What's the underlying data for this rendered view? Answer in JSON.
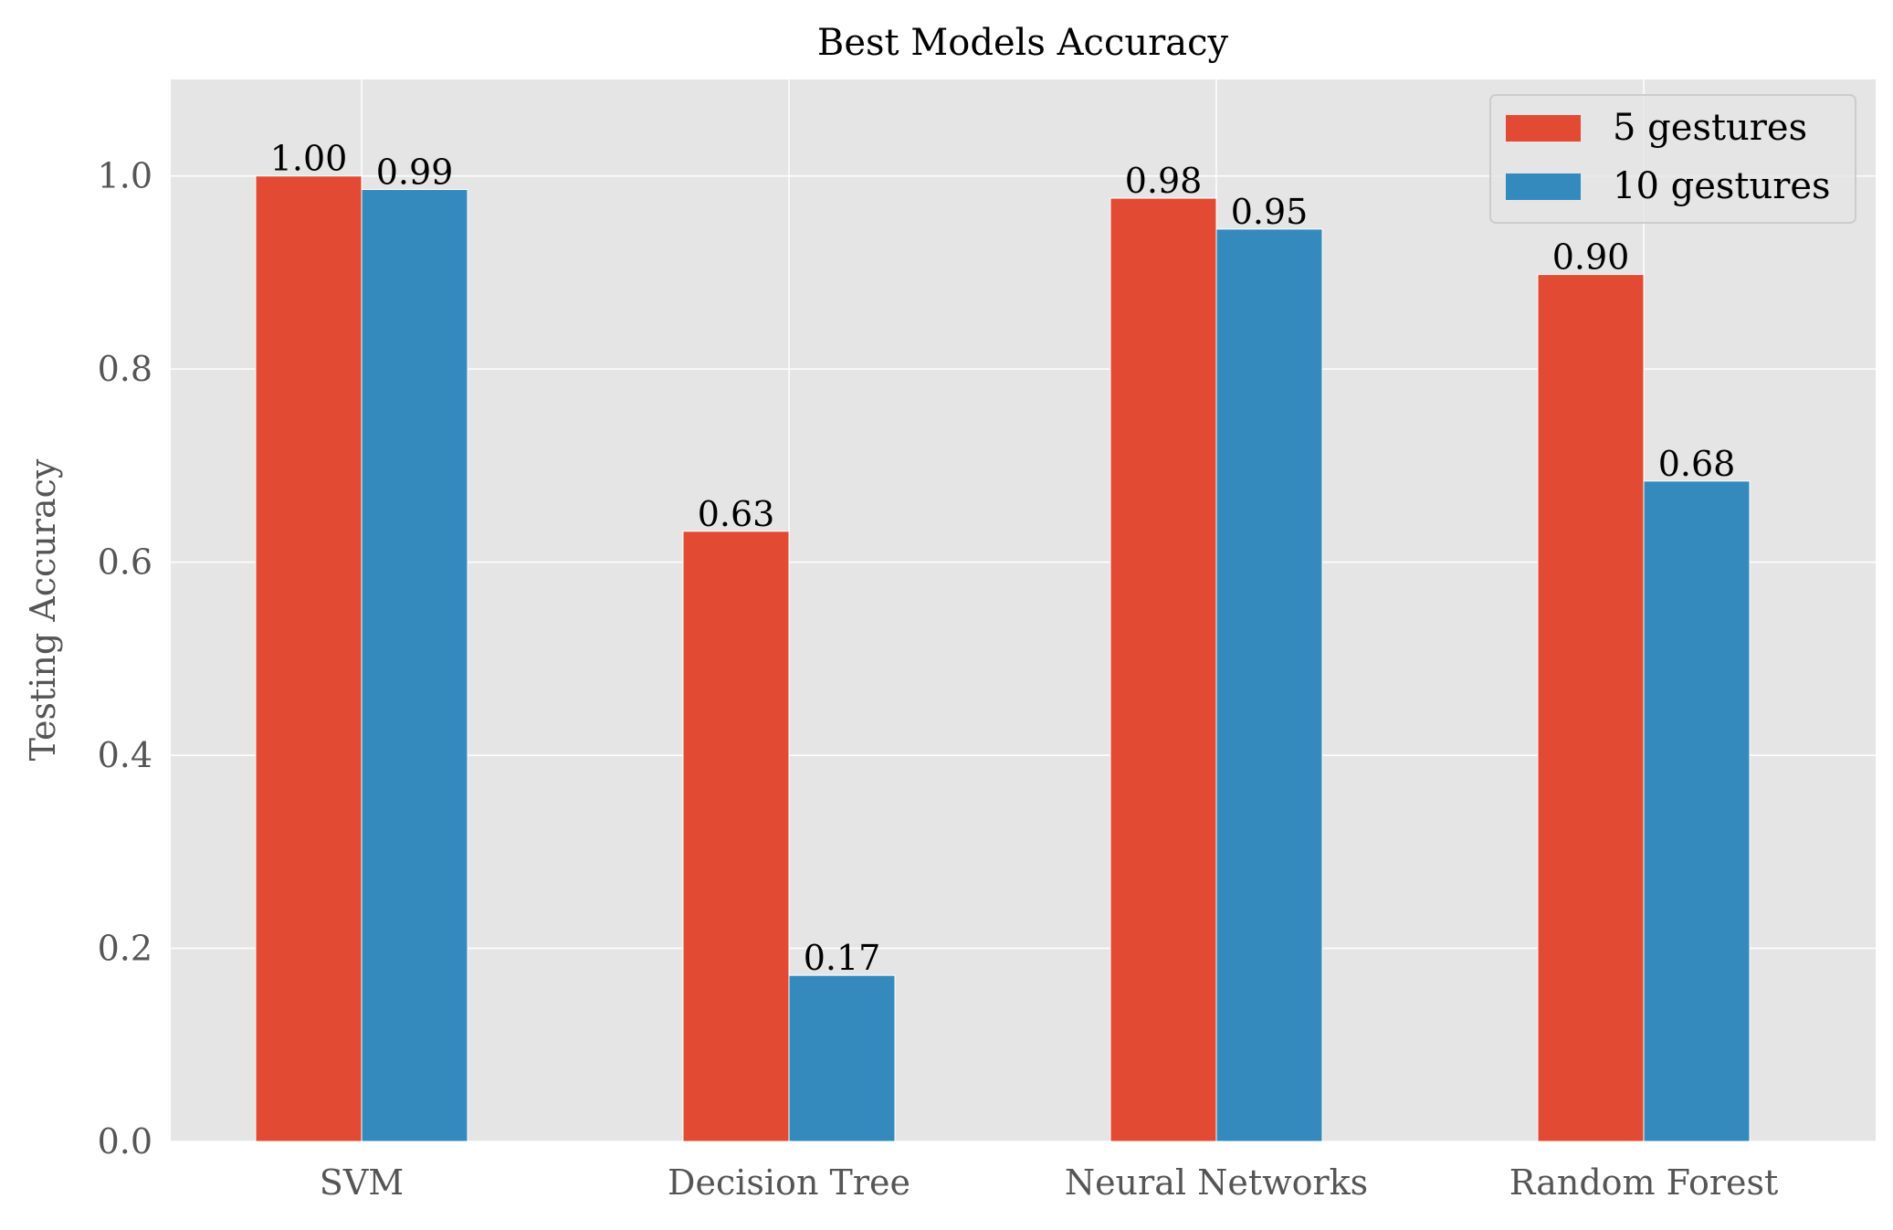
{
  "chart_data": {
    "type": "bar",
    "title": "Best Models Accuracy",
    "xlabel": "",
    "ylabel": "Testing Accuracy",
    "categories": [
      "SVM",
      "Decision Tree",
      "Neural Networks",
      "Random Forest"
    ],
    "series": [
      {
        "name": "5 gestures",
        "color": "#E24A33",
        "values": [
          1.0,
          0.632,
          0.977,
          0.898
        ],
        "labels": [
          "1.00",
          "0.63",
          "0.98",
          "0.90"
        ]
      },
      {
        "name": "10 gestures",
        "color": "#348ABD",
        "values": [
          0.986,
          0.172,
          0.945,
          0.684
        ],
        "labels": [
          "0.99",
          "0.17",
          "0.95",
          "0.68"
        ]
      }
    ],
    "ylim": [
      0,
      1.1
    ],
    "yticks": [
      0.0,
      0.2,
      0.4,
      0.6,
      0.8,
      1.0
    ],
    "ytick_labels": [
      "0.0",
      "0.2",
      "0.4",
      "0.6",
      "0.8",
      "1.0"
    ],
    "grid": true,
    "legend_position": "top-right",
    "style": {
      "plot_background": "#E5E5E5",
      "grid_color": "#FFFFFF"
    }
  }
}
